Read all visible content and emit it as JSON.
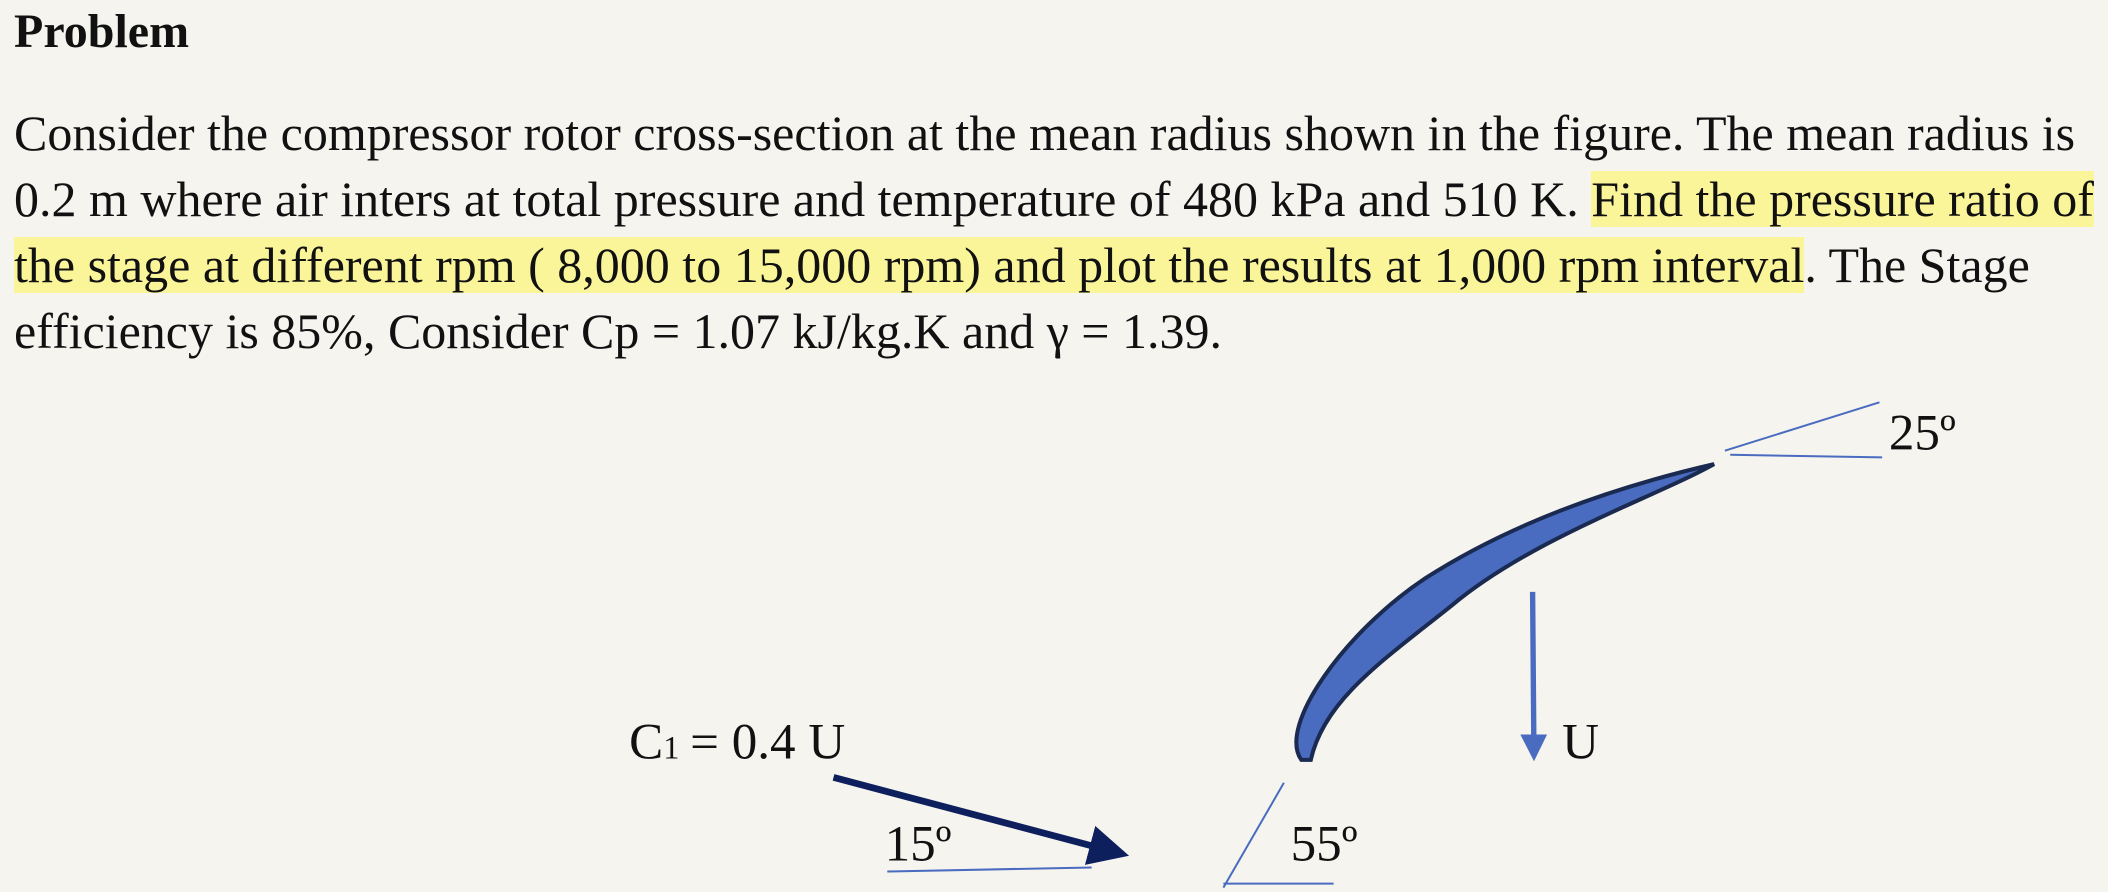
{
  "header": {
    "title": "Problem"
  },
  "paragraph": {
    "before": "Consider the compressor rotor cross-section at the mean radius shown in the figure. The mean radius is 0.2 m where air inters at total pressure and temperature of 480 kPa and 510 K.",
    "highlight": "Find the pressure ratio of the stage at different rpm ( 8,000 to 15,000 rpm) and plot the results at 1,000 rpm interval",
    "after": ". The Stage efficiency is 85%, Consider Cp = 1.07 kJ/kg.K and γ = 1.39."
  },
  "figure": {
    "outlet_angle": "25º",
    "inflow_label": {
      "symbol": "C",
      "subscript": "1",
      "rest": "= 0.4 U"
    },
    "inflow_angle": "15º",
    "inlet_blade_angle": "55º",
    "blade_speed_label": "U"
  }
}
